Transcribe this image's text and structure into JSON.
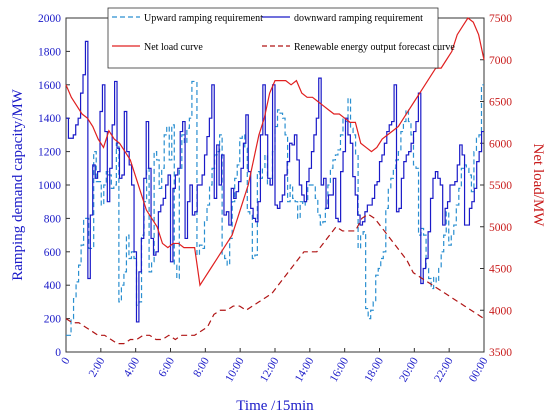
{
  "chart_data": {
    "type": "line",
    "x_unit_ticks": [
      "0",
      "2:00",
      "4:00",
      "6:00",
      "8:00",
      "10:00",
      "12:00",
      "14:00",
      "16:00",
      "18:00",
      "20:00",
      "22:00",
      "00:00"
    ],
    "xlabel": "Time /15min",
    "ylabel_left": "Ramping demand capacity/MW",
    "ylabel_right": "Net load/MW",
    "ylim_left": [
      0,
      2000
    ],
    "ylim_right": [
      3500,
      7500
    ],
    "yticks_left": [
      "0",
      "200",
      "400",
      "600",
      "800",
      "1000",
      "1200",
      "1400",
      "1600",
      "1800",
      "2000"
    ],
    "yticks_right": [
      "3500",
      "4000",
      "4500",
      "5000",
      "5500",
      "6000",
      "6500",
      "7000",
      "7500"
    ],
    "legend_position": "top",
    "colors": {
      "left_axis": "#1a1ac8",
      "right_axis": "#c81a1a",
      "upward": "#2a8fd0",
      "downward": "#1a1ac8",
      "net_load": "#e02020",
      "renewable": "#b01515"
    },
    "series": [
      {
        "name": "Upward ramping requirement",
        "axis": "left",
        "style": "dashed-step",
        "values": [
          100,
          100,
          200,
          320,
          420,
          520,
          640,
          800,
          800,
          620,
          620,
          1200,
          1020,
          1020,
          880,
          1000,
          1080,
          1060,
          980,
          1000,
          1250,
          300,
          400,
          480,
          700,
          560,
          600,
          560,
          280,
          300,
          700,
          900,
          1100,
          480,
          540,
          1200,
          1150,
          980,
          1100,
          1300,
          1350,
          1150,
          1360,
          520,
          440,
          1100,
          1300,
          1250,
          1340,
          1400,
          1620,
          1620,
          580,
          640,
          620,
          780,
          880,
          1000,
          1100,
          1180,
          1200,
          1300,
          580,
          560,
          520,
          680,
          900,
          1040,
          1120,
          1280,
          1300,
          1220,
          840,
          820,
          560,
          580,
          1080,
          1040,
          1100,
          1180,
          1000,
          1040,
          1200,
          1350,
          1450,
          1430,
          1400,
          1300,
          900,
          1000,
          920,
          900,
          800,
          900,
          880,
          900,
          1000,
          1000,
          1000,
          920,
          820,
          760,
          780,
          860,
          1000,
          1100,
          1150,
          1180,
          1210,
          1300,
          1400,
          1380,
          1520,
          1340,
          1300,
          1180,
          620,
          700,
          720,
          260,
          200,
          250,
          300,
          460,
          500,
          560,
          600,
          860,
          980,
          1040,
          1100,
          1150,
          1200,
          1320,
          1380,
          1450,
          1380,
          1300,
          1120,
          1100,
          700,
          740,
          700,
          500,
          440,
          380,
          450,
          420,
          500,
          600,
          700,
          840,
          640,
          700,
          760,
          880,
          980,
          1100,
          1120,
          1100,
          1060,
          960,
          1200,
          1280,
          1300,
          1600
        ]
      },
      {
        "name": "downward ramping requirement",
        "axis": "left",
        "style": "solid-step",
        "values": [
          1400,
          1280,
          1280,
          1300,
          1360,
          1400,
          1550,
          1660,
          1860,
          440,
          820,
          1120,
          1040,
          1080,
          1440,
          1600,
          1320,
          900,
          1100,
          1360,
          1620,
          1220,
          1040,
          1060,
          1440,
          1200,
          1120,
          1000,
          600,
          180,
          480,
          680,
          1040,
          1380,
          1100,
          680,
          580,
          600,
          840,
          880,
          920,
          1000,
          1060,
          540,
          980,
          1060,
          1100,
          1320,
          1380,
          680,
          900,
          1000,
          820,
          840,
          1000,
          1000,
          1060,
          1180,
          1290,
          1400,
          1600,
          920,
          1240,
          1000,
          1180,
          820,
          840,
          760,
          980,
          920,
          960,
          1020,
          1100,
          1250,
          1420,
          1080,
          860,
          800,
          780,
          900,
          1300,
          1600,
          1300,
          1040,
          1000,
          1600,
          880,
          860,
          900,
          940,
          1060,
          1140,
          1250,
          1240,
          1300,
          1150,
          1000,
          940,
          900,
          1020,
          1100,
          1200,
          1300,
          1400,
          1640,
          1000,
          1040,
          860,
          940,
          940,
          1040,
          800,
          780,
          1080,
          1200,
          1400,
          1300,
          1250,
          1050,
          940,
          820,
          760,
          780,
          840,
          880,
          880,
          920,
          1000,
          1020,
          1140,
          1180,
          1250,
          1320,
          1360,
          1380,
          1600,
          840,
          860,
          1040,
          1140,
          1180,
          1200,
          1250,
          1320,
          1380,
          1550,
          410,
          500,
          560,
          720,
          920,
          1040,
          1080,
          1040,
          1000,
          760,
          860,
          900,
          1000,
          1000,
          1020,
          1120,
          1240,
          1180,
          760,
          760,
          860,
          900,
          980,
          1140,
          1200,
          1320
        ]
      },
      {
        "name": "Net load curve",
        "axis": "right",
        "style": "solid",
        "values": [
          6700,
          6550,
          6450,
          6350,
          6300,
          6200,
          6050,
          5950,
          6150,
          6050,
          6000,
          5900,
          5800,
          5600,
          5400,
          5200,
          5100,
          5000,
          4800,
          4750,
          4800,
          4800,
          4750,
          4750,
          4750,
          4300,
          4400,
          4500,
          4600,
          4700,
          4800,
          4900,
          5100,
          5300,
          5500,
          5800,
          6100,
          6300,
          6600,
          6750,
          6750,
          6750,
          6700,
          6750,
          6600,
          6550,
          6550,
          6500,
          6450,
          6400,
          6350,
          6350,
          6300,
          6250,
          6250,
          6000,
          5950,
          5900,
          5950,
          6050,
          6100,
          6150,
          6200,
          6300,
          6400,
          6500,
          6600,
          6700,
          6800,
          6900,
          6900,
          7000,
          7100,
          7300,
          7400,
          7500,
          7450,
          7300,
          7000
        ]
      },
      {
        "name": "Renewable energy output forecast curve",
        "axis": "right",
        "style": "dashed",
        "values": [
          3900,
          3850,
          3850,
          3800,
          3750,
          3700,
          3700,
          3650,
          3600,
          3600,
          3650,
          3650,
          3700,
          3700,
          3650,
          3650,
          3700,
          3650,
          3700,
          3700,
          3700,
          3750,
          3800,
          3950,
          4000,
          4000,
          4050,
          4050,
          4000,
          4050,
          4100,
          4150,
          4200,
          4300,
          4400,
          4500,
          4600,
          4700,
          4700,
          4700,
          4800,
          4900,
          5000,
          4950,
          4950,
          4950,
          5100,
          5150,
          5100,
          5000,
          4900,
          4800,
          4700,
          4600,
          4450,
          4400,
          4350,
          4300,
          4250,
          4200,
          4150,
          4100,
          4050,
          4000,
          3950,
          3900
        ]
      }
    ]
  },
  "legend": {
    "upward_label": "Upward ramping requirement",
    "downward_label": "downward ramping requirement",
    "net_label": "Net load curve",
    "renewable_label": "Renewable energy output forecast curve"
  }
}
